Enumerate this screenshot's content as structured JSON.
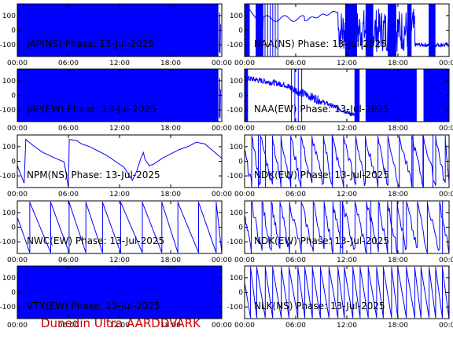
{
  "footer": "Dunedin Ultra AARDDVARK",
  "chart_data": [
    {
      "type": "line",
      "title": "JAP(NS) Phase: 13-Jul-2025",
      "x_ticks": [
        "00:00",
        "06:00",
        "12:00",
        "18:00",
        "00:00"
      ],
      "y_ticks": [
        "100",
        "0",
        "-100"
      ],
      "ylim": [
        -180,
        180
      ],
      "xlim_hours": [
        0,
        24
      ],
      "color": "#0000ff",
      "pattern": "dense",
      "data_end_hour": 23.6
    },
    {
      "type": "line",
      "title": "NAA(NS) Phase: 13-Jul-2025",
      "x_ticks": [
        "00:00",
        "06:00",
        "12:00",
        "18:00",
        "00:00"
      ],
      "y_ticks": [
        "100",
        "0",
        "-100"
      ],
      "ylim": [
        -180,
        180
      ],
      "xlim_hours": [
        0,
        24
      ],
      "color": "#0000ff",
      "pattern": "naa_ns"
    },
    {
      "type": "line",
      "title": "JAP(EW) Phase: 13-Jul-2025",
      "x_ticks": [
        "00:00",
        "06:00",
        "12:00",
        "18:00",
        "00:00"
      ],
      "y_ticks": [
        "100",
        "0",
        "-100"
      ],
      "ylim": [
        -180,
        180
      ],
      "xlim_hours": [
        0,
        24
      ],
      "color": "#0000ff",
      "pattern": "dense",
      "data_end_hour": 23.6
    },
    {
      "type": "line",
      "title": "NAA(EW) Phase: 13-Jul-2025",
      "x_ticks": [
        "00:00",
        "06:00",
        "12:00",
        "18:00",
        "00:00"
      ],
      "y_ticks": [
        "100",
        "0",
        "-100"
      ],
      "ylim": [
        -180,
        180
      ],
      "xlim_hours": [
        0,
        24
      ],
      "color": "#0000ff",
      "pattern": "naa_ew"
    },
    {
      "type": "line",
      "title": "NPM(NS) Phase: 13-Jul-2025",
      "x_ticks": [
        "00:00",
        "06:00",
        "12:00",
        "18:00",
        "00:00"
      ],
      "y_ticks": [
        "100",
        "0",
        "-100"
      ],
      "ylim": [
        -180,
        180
      ],
      "xlim_hours": [
        0,
        24
      ],
      "color": "#0000ff",
      "pattern": "npm",
      "points": [
        [
          0,
          -30
        ],
        [
          0.8,
          -150
        ],
        [
          1,
          150
        ],
        [
          1.8,
          110
        ],
        [
          3,
          60
        ],
        [
          4.5,
          20
        ],
        [
          5.5,
          -5
        ],
        [
          6,
          -180
        ],
        [
          6.1,
          150
        ],
        [
          7,
          140
        ],
        [
          7.5,
          120
        ],
        [
          8.5,
          100
        ],
        [
          9.5,
          70
        ],
        [
          10.5,
          40
        ],
        [
          11.5,
          0
        ],
        [
          12.5,
          -40
        ],
        [
          13.5,
          -130
        ],
        [
          14,
          -70
        ],
        [
          14.5,
          20
        ],
        [
          14.8,
          60
        ],
        [
          15,
          10
        ],
        [
          15.5,
          -30
        ],
        [
          16,
          -20
        ],
        [
          17,
          20
        ],
        [
          18,
          50
        ],
        [
          19,
          80
        ],
        [
          20,
          100
        ],
        [
          21,
          130
        ],
        [
          22,
          120
        ],
        [
          23,
          70
        ],
        [
          24,
          20
        ]
      ]
    },
    {
      "type": "line",
      "title": "NDK(EW) Phase: 13-Jul-2025",
      "x_ticks": [
        "00:00",
        "06:00",
        "12:00",
        "18:00",
        "00:00"
      ],
      "y_ticks": [
        "100",
        "0",
        "-100"
      ],
      "ylim": [
        -180,
        180
      ],
      "xlim_hours": [
        0,
        24
      ],
      "color": "#0000ff",
      "pattern": "saw_noisy",
      "period_hours": 1.25
    },
    {
      "type": "line",
      "title": "NWC(EW) Phase: 13-Jul-2025",
      "x_ticks": [
        "00:00",
        "06:00",
        "12:00",
        "18:00",
        "00:00"
      ],
      "y_ticks": [
        "100",
        "0",
        "-100"
      ],
      "ylim": [
        -180,
        180
      ],
      "xlim_hours": [
        0,
        24
      ],
      "color": "#0000ff",
      "pattern": "saw",
      "period_hours": 2.2
    },
    {
      "type": "line",
      "title": "NDK(EW) Phase: 13-Jul-2025",
      "x_ticks": [
        "00:00",
        "06:00",
        "12:00",
        "18:00",
        "00:00"
      ],
      "y_ticks": [
        "100",
        "0",
        "-100"
      ],
      "ylim": [
        -180,
        180
      ],
      "xlim_hours": [
        0,
        24
      ],
      "color": "#0000ff",
      "pattern": "saw_noisy",
      "period_hours": 1.25
    },
    {
      "type": "line",
      "title": "VTX(EW) Phase: 13-Jul-2025",
      "x_ticks": [
        "00:00",
        "06:00",
        "12:00",
        "18:00",
        "00:00"
      ],
      "y_ticks": [
        "100",
        "0",
        "-100"
      ],
      "ylim": [
        -180,
        180
      ],
      "xlim_hours": [
        0,
        24
      ],
      "color": "#0000ff",
      "pattern": "dense",
      "data_end_hour": 24
    },
    {
      "type": "line",
      "title": "NLK(NS) Phase: 13-Jul-2025",
      "x_ticks": [
        "00:00",
        "06:00",
        "12:00",
        "18:00",
        "00:00"
      ],
      "y_ticks": [
        "100",
        "0",
        "-100"
      ],
      "ylim": [
        -180,
        180
      ],
      "xlim_hours": [
        0,
        24
      ],
      "color": "#0000ff",
      "pattern": "saw",
      "period_hours": 0.9
    }
  ]
}
